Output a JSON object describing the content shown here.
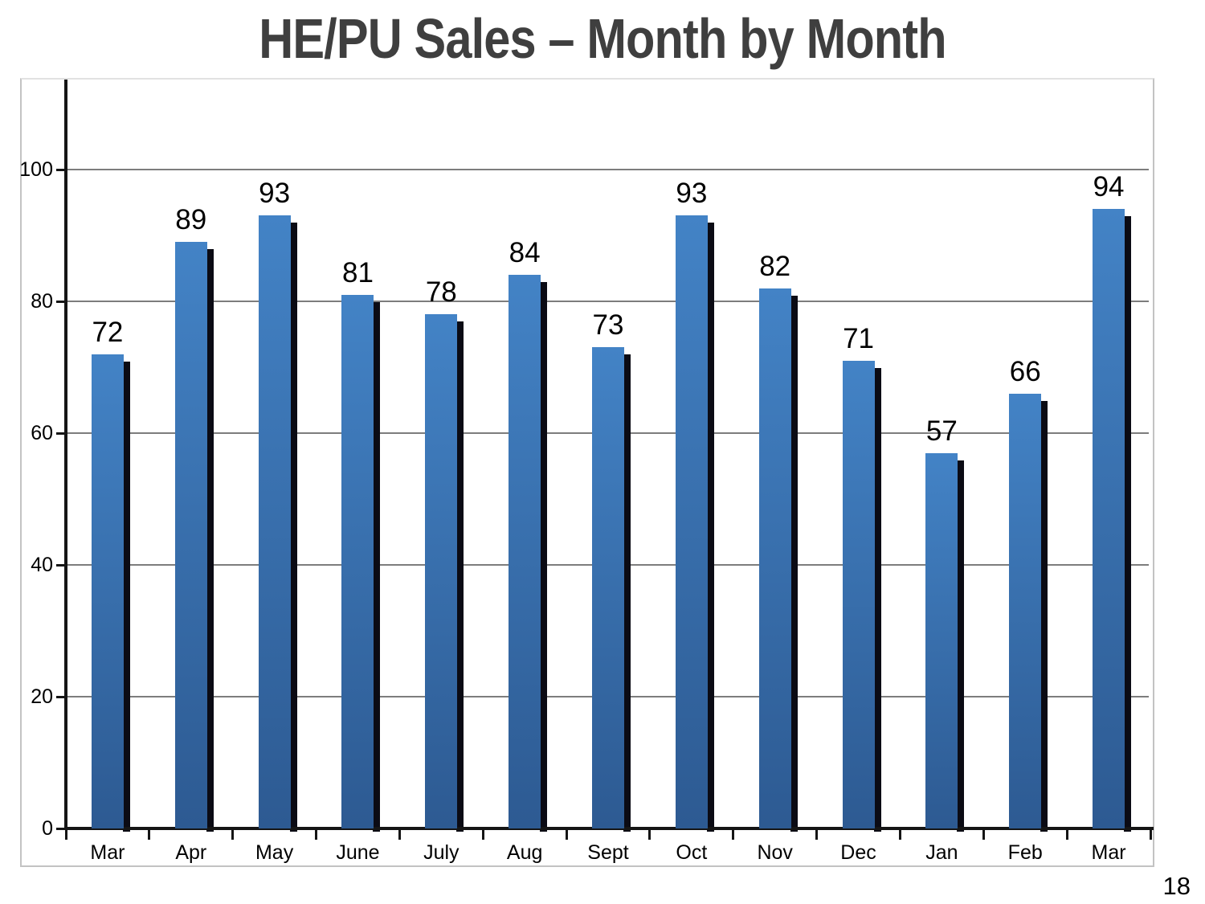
{
  "title": "HE/PU Sales – Month by Month",
  "page": {
    "number": "18"
  },
  "chart_data": {
    "type": "bar",
    "title": "HE/PU Sales – Month by Month",
    "categories": [
      "Mar",
      "Apr",
      "May",
      "June",
      "July",
      "Aug",
      "Sept",
      "Oct",
      "Nov",
      "Dec",
      "Jan",
      "Feb",
      "Mar"
    ],
    "values": [
      72,
      89,
      93,
      81,
      78,
      84,
      73,
      93,
      82,
      71,
      57,
      66,
      94
    ],
    "xlabel": "",
    "ylabel": "",
    "ylim": [
      0,
      113
    ],
    "yticks": [
      0,
      20,
      40,
      60,
      80,
      100
    ],
    "grid": true,
    "legend": "none",
    "colors": {
      "bar_top": "#4383c6",
      "bar_bottom": "#2d5a92",
      "bar_shadow": "#0b0b14",
      "gridline": "#7d7d7d",
      "axis": "#151515",
      "title_text": "#3f3f3f",
      "label_text": "#000000"
    }
  }
}
